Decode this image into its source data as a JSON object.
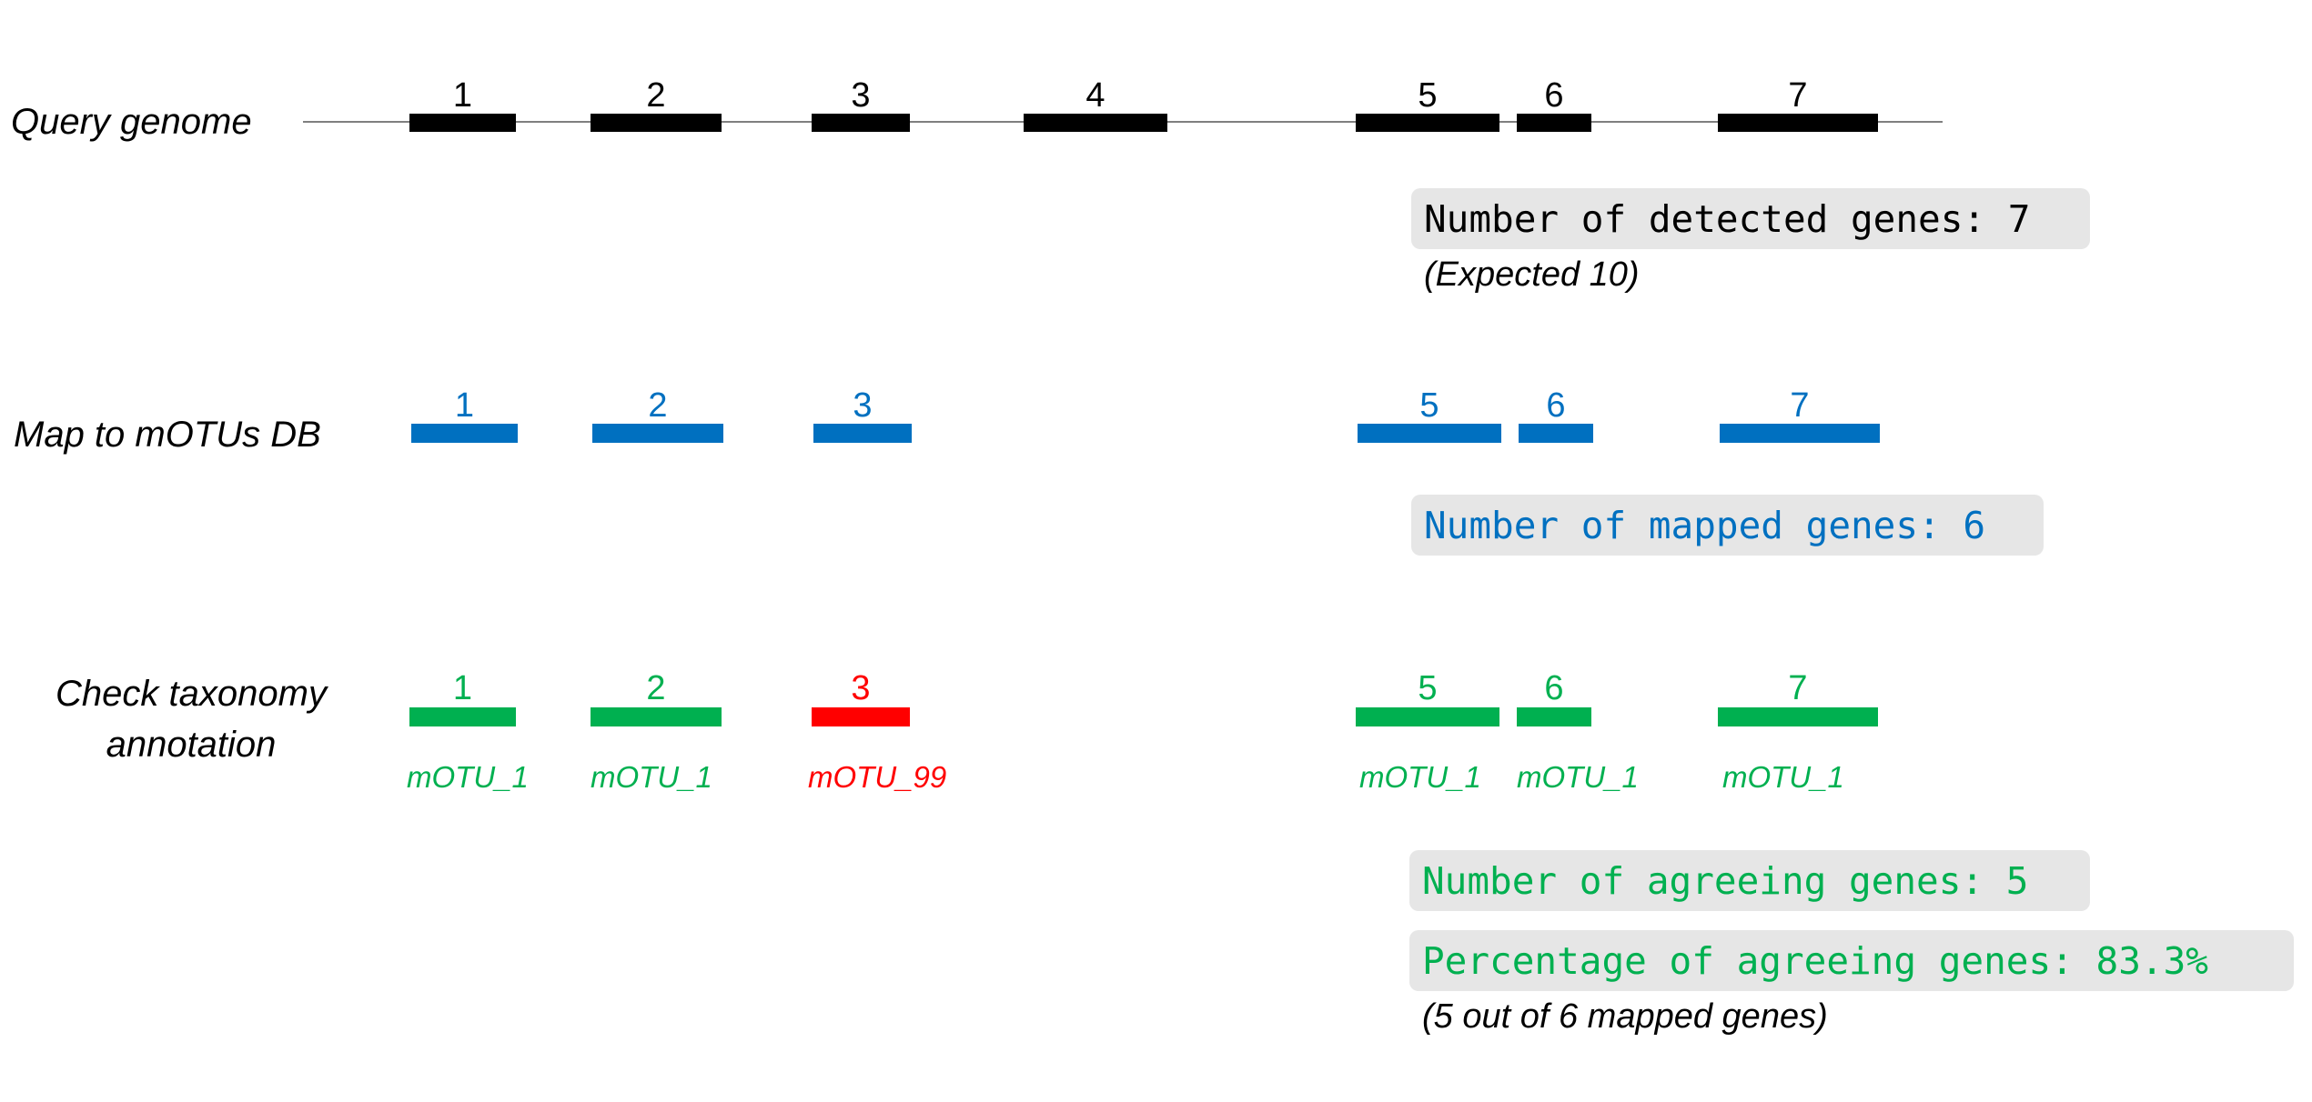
{
  "colors": {
    "query": "#000000",
    "mapped": "#0070c0",
    "agree": "#00b050",
    "disagree": "#ff0000",
    "line": "#7f7f7f",
    "box": "#e6e6e6"
  },
  "rows": {
    "query": {
      "label": "Query genome",
      "genes": [
        "1",
        "2",
        "3",
        "4",
        "5",
        "6",
        "7"
      ]
    },
    "mapped": {
      "label": "Map to mOTUs DB",
      "genes": [
        "1",
        "2",
        "3",
        "5",
        "6",
        "7"
      ]
    },
    "taxonomy": {
      "label_line1": "Check taxonomy",
      "label_line2": "annotation",
      "genes": [
        "1",
        "2",
        "3",
        "5",
        "6",
        "7"
      ],
      "annotations": [
        "mOTU_1",
        "mOTU_1",
        "mOTU_99",
        "mOTU_1",
        "mOTU_1",
        "mOTU_1"
      ],
      "agrees": [
        true,
        true,
        false,
        true,
        true,
        true
      ]
    }
  },
  "stats": {
    "detected": "Number of detected genes: 7",
    "expected_note": "(Expected 10)",
    "mapped": "Number of mapped genes: 6",
    "agreeing": "Number of agreeing genes: 5",
    "percentage": "Percentage of agreeing genes: 83.3%",
    "percentage_note": "(5 out of 6 mapped genes)"
  }
}
